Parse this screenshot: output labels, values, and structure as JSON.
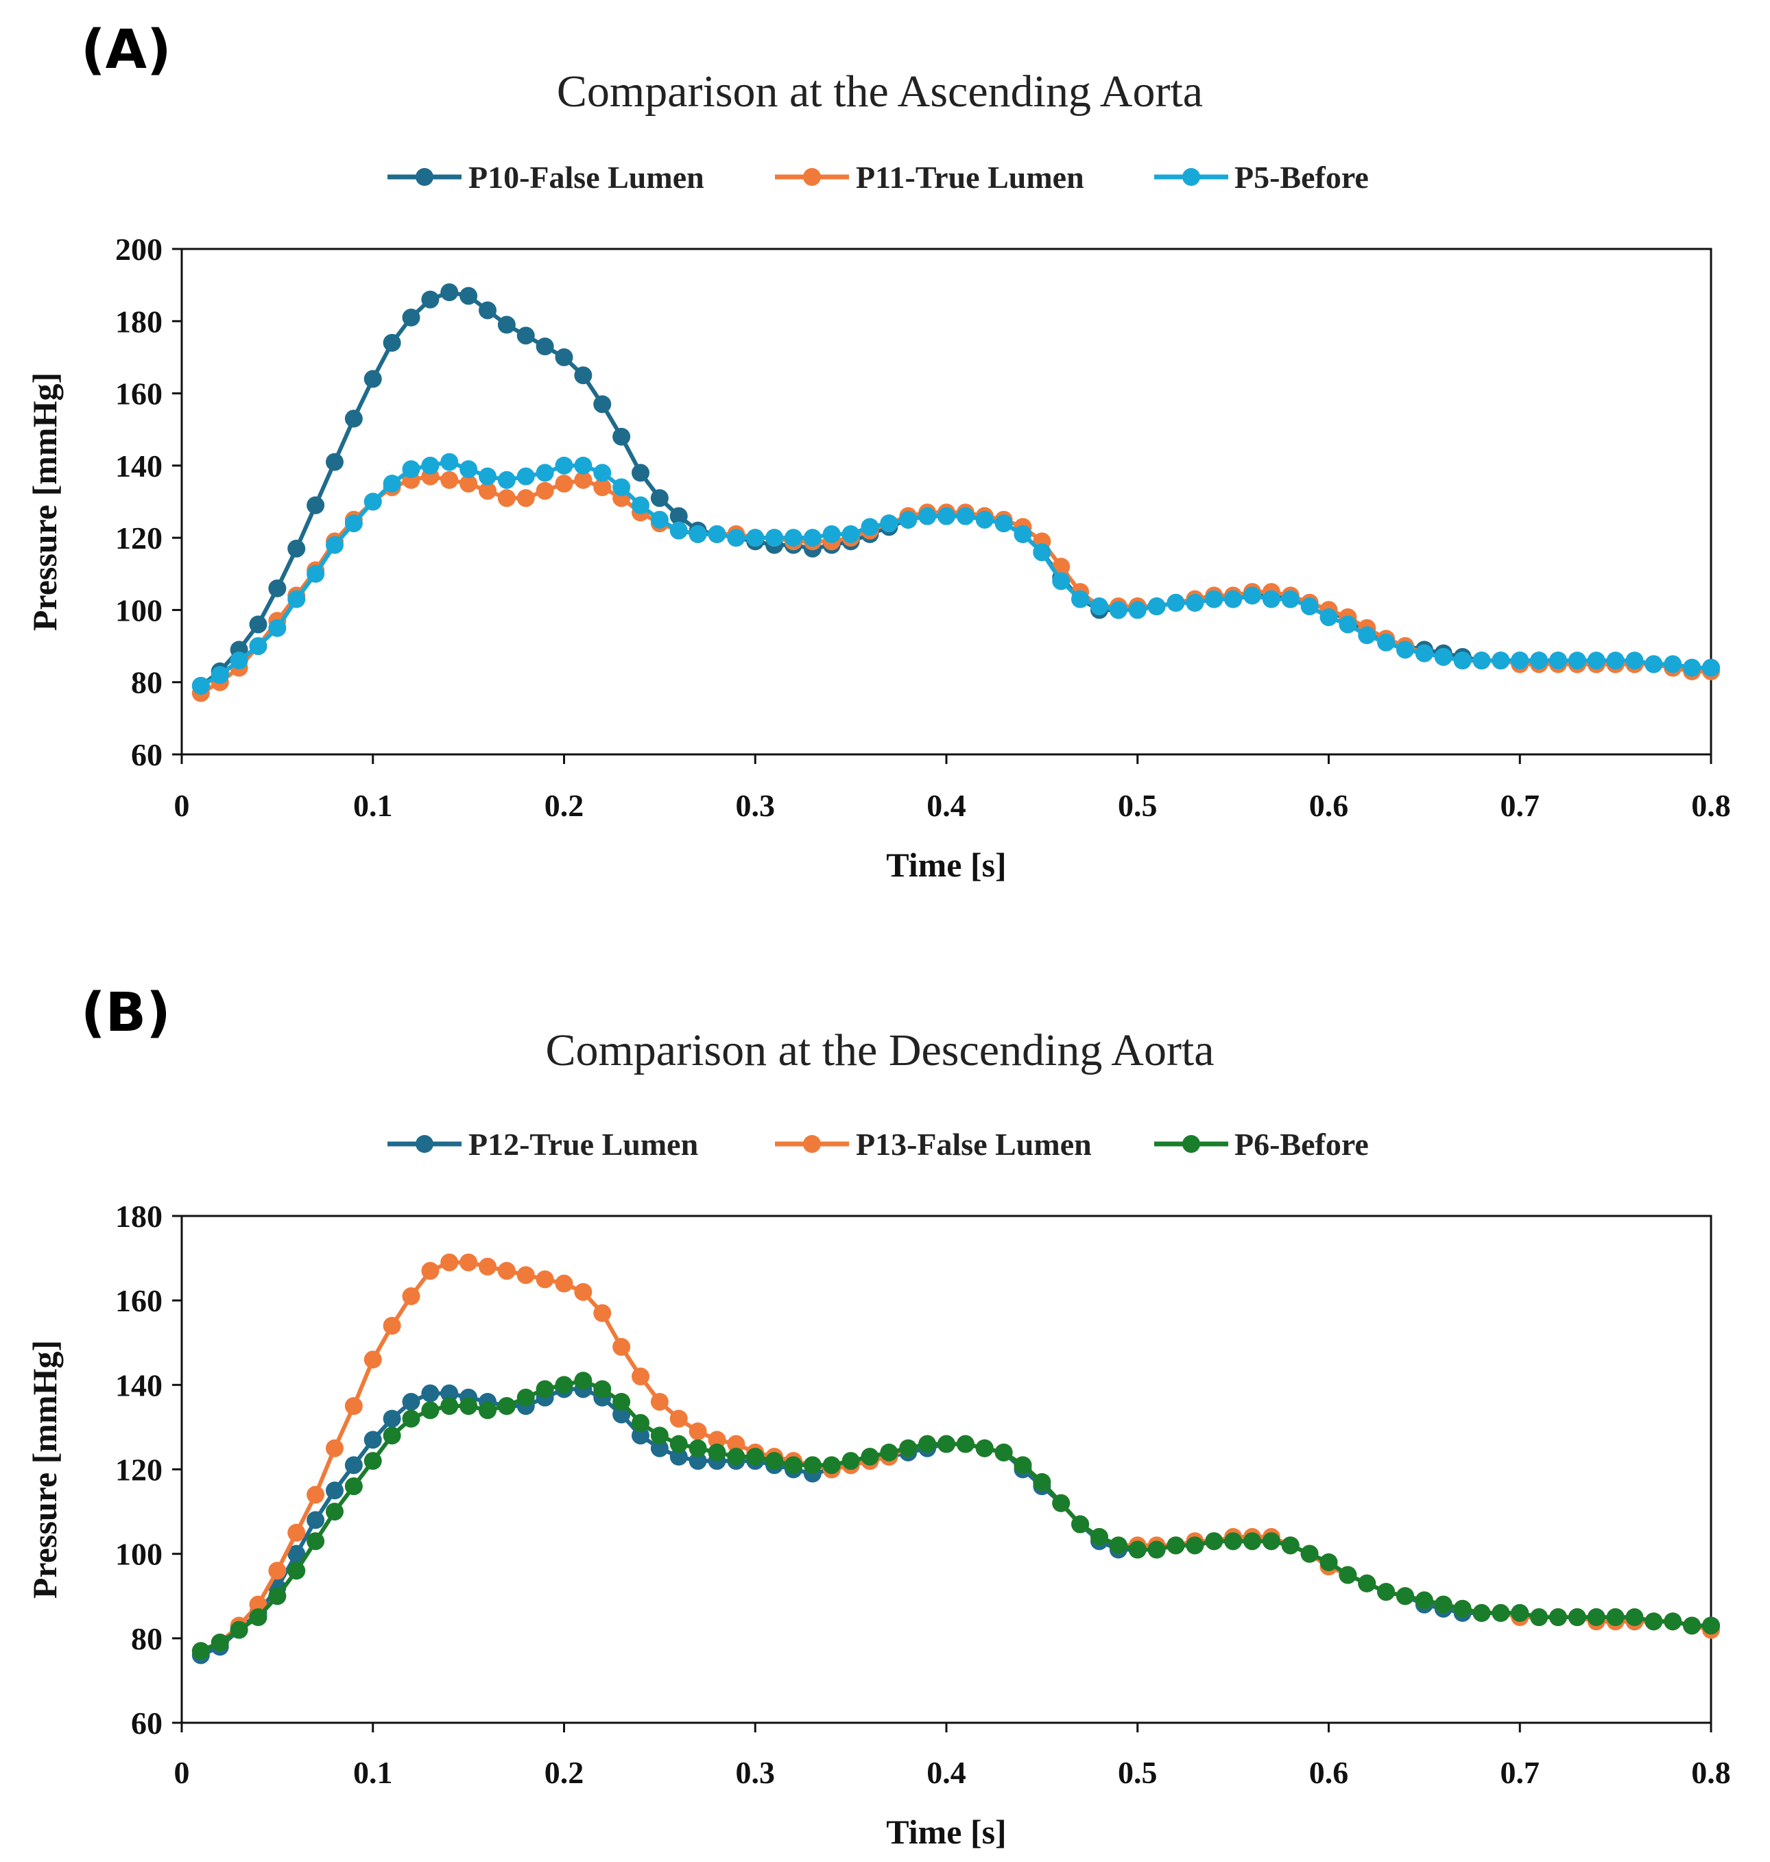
{
  "chart_data": [
    {
      "type": "line",
      "panel": "(A)",
      "title": "Comparison at the Ascending Aorta",
      "xlabel": "Time [s]",
      "ylabel": "Pressure [mmHg]",
      "xlim": [
        0,
        0.8
      ],
      "ylim": [
        60,
        200
      ],
      "xticks": [
        "0",
        "0.1",
        "0.2",
        "0.3",
        "0.4",
        "0.5",
        "0.6",
        "0.7",
        "0.8"
      ],
      "yticks": [
        "60",
        "80",
        "100",
        "120",
        "140",
        "160",
        "180",
        "200"
      ],
      "grid": false,
      "legend_position": "top",
      "x": [
        0.01,
        0.02,
        0.03,
        0.04,
        0.05,
        0.06,
        0.07,
        0.08,
        0.09,
        0.1,
        0.11,
        0.12,
        0.13,
        0.14,
        0.15,
        0.16,
        0.17,
        0.18,
        0.19,
        0.2,
        0.21,
        0.22,
        0.23,
        0.24,
        0.25,
        0.26,
        0.27,
        0.28,
        0.29,
        0.3,
        0.31,
        0.32,
        0.33,
        0.34,
        0.35,
        0.36,
        0.37,
        0.38,
        0.39,
        0.4,
        0.41,
        0.42,
        0.43,
        0.44,
        0.45,
        0.46,
        0.47,
        0.48,
        0.49,
        0.5,
        0.51,
        0.52,
        0.53,
        0.54,
        0.55,
        0.56,
        0.57,
        0.58,
        0.59,
        0.6,
        0.61,
        0.62,
        0.63,
        0.64,
        0.65,
        0.66,
        0.67,
        0.68,
        0.69,
        0.7,
        0.71,
        0.72,
        0.73,
        0.74,
        0.75,
        0.76,
        0.77,
        0.78,
        0.79,
        0.8
      ],
      "series": [
        {
          "name": "P10-False Lumen",
          "color": "#1f6b8c",
          "values": [
            79,
            83,
            89,
            96,
            106,
            117,
            129,
            141,
            153,
            164,
            174,
            181,
            186,
            188,
            187,
            183,
            179,
            176,
            173,
            170,
            165,
            157,
            148,
            138,
            131,
            126,
            122,
            121,
            120,
            119,
            118,
            118,
            117,
            118,
            119,
            121,
            123,
            125,
            126,
            126,
            126,
            126,
            124,
            121,
            116,
            109,
            103,
            100,
            100,
            101,
            101,
            102,
            102,
            103,
            103,
            104,
            104,
            103,
            102,
            100,
            97,
            94,
            92,
            90,
            89,
            88,
            87,
            86,
            86,
            86,
            86,
            86,
            85,
            85,
            85,
            85,
            85,
            84,
            84,
            84
          ]
        },
        {
          "name": "P11-True Lumen",
          "color": "#f07a3a",
          "values": [
            77,
            80,
            84,
            90,
            97,
            104,
            111,
            119,
            125,
            130,
            134,
            136,
            137,
            136,
            135,
            133,
            131,
            131,
            133,
            135,
            136,
            134,
            131,
            127,
            124,
            122,
            121,
            121,
            121,
            120,
            120,
            119,
            119,
            119,
            120,
            122,
            124,
            126,
            127,
            127,
            127,
            126,
            125,
            123,
            119,
            112,
            105,
            101,
            101,
            101,
            101,
            102,
            103,
            104,
            104,
            105,
            105,
            104,
            102,
            100,
            98,
            95,
            92,
            90,
            88,
            87,
            86,
            86,
            86,
            85,
            85,
            85,
            85,
            85,
            85,
            85,
            85,
            84,
            83,
            83
          ]
        },
        {
          "name": "P5-Before",
          "color": "#18a8d8",
          "values": [
            79,
            82,
            86,
            90,
            95,
            103,
            110,
            118,
            124,
            130,
            135,
            139,
            140,
            141,
            139,
            137,
            136,
            137,
            138,
            140,
            140,
            138,
            134,
            129,
            125,
            122,
            121,
            121,
            120,
            120,
            120,
            120,
            120,
            121,
            121,
            123,
            124,
            125,
            126,
            126,
            126,
            125,
            124,
            121,
            116,
            108,
            103,
            101,
            100,
            100,
            101,
            102,
            102,
            103,
            103,
            104,
            103,
            103,
            101,
            98,
            96,
            93,
            91,
            89,
            88,
            87,
            86,
            86,
            86,
            86,
            86,
            86,
            86,
            86,
            86,
            86,
            85,
            85,
            84,
            84
          ]
        }
      ]
    },
    {
      "type": "line",
      "panel": "(B)",
      "title": "Comparison at the Descending Aorta",
      "xlabel": "Time [s]",
      "ylabel": "Pressure [mmHg]",
      "xlim": [
        0,
        0.8
      ],
      "ylim": [
        60,
        180
      ],
      "xticks": [
        "0",
        "0.1",
        "0.2",
        "0.3",
        "0.4",
        "0.5",
        "0.6",
        "0.7",
        "0.8"
      ],
      "yticks": [
        "60",
        "80",
        "100",
        "120",
        "140",
        "160",
        "180"
      ],
      "grid": false,
      "legend_position": "top",
      "x": [
        0.01,
        0.02,
        0.03,
        0.04,
        0.05,
        0.06,
        0.07,
        0.08,
        0.09,
        0.1,
        0.11,
        0.12,
        0.13,
        0.14,
        0.15,
        0.16,
        0.17,
        0.18,
        0.19,
        0.2,
        0.21,
        0.22,
        0.23,
        0.24,
        0.25,
        0.26,
        0.27,
        0.28,
        0.29,
        0.3,
        0.31,
        0.32,
        0.33,
        0.34,
        0.35,
        0.36,
        0.37,
        0.38,
        0.39,
        0.4,
        0.41,
        0.42,
        0.43,
        0.44,
        0.45,
        0.46,
        0.47,
        0.48,
        0.49,
        0.5,
        0.51,
        0.52,
        0.53,
        0.54,
        0.55,
        0.56,
        0.57,
        0.58,
        0.59,
        0.6,
        0.61,
        0.62,
        0.63,
        0.64,
        0.65,
        0.66,
        0.67,
        0.68,
        0.69,
        0.7,
        0.71,
        0.72,
        0.73,
        0.74,
        0.75,
        0.76,
        0.77,
        0.78,
        0.79,
        0.8
      ],
      "series": [
        {
          "name": "P12-True Lumen",
          "color": "#1f6b8c",
          "values": [
            76,
            78,
            82,
            86,
            92,
            100,
            108,
            115,
            121,
            127,
            132,
            136,
            138,
            138,
            137,
            136,
            135,
            135,
            137,
            139,
            139,
            137,
            133,
            128,
            125,
            123,
            122,
            122,
            122,
            122,
            121,
            120,
            119,
            120,
            121,
            122,
            123,
            124,
            125,
            126,
            126,
            125,
            124,
            120,
            116,
            112,
            107,
            103,
            101,
            101,
            101,
            102,
            102,
            103,
            103,
            103,
            103,
            102,
            100,
            98,
            95,
            93,
            91,
            90,
            88,
            87,
            86,
            86,
            86,
            86,
            85,
            85,
            85,
            85,
            85,
            84,
            84,
            84,
            83,
            83
          ]
        },
        {
          "name": "P13-False Lumen",
          "color": "#f07a3a",
          "values": [
            77,
            79,
            83,
            88,
            96,
            105,
            114,
            125,
            135,
            146,
            154,
            161,
            167,
            169,
            169,
            168,
            167,
            166,
            165,
            164,
            162,
            157,
            149,
            142,
            136,
            132,
            129,
            127,
            126,
            124,
            123,
            122,
            121,
            120,
            121,
            122,
            123,
            125,
            126,
            126,
            126,
            125,
            124,
            121,
            117,
            112,
            107,
            104,
            102,
            102,
            102,
            102,
            103,
            103,
            104,
            104,
            104,
            102,
            100,
            97,
            95,
            93,
            91,
            90,
            89,
            88,
            87,
            86,
            86,
            85,
            85,
            85,
            85,
            84,
            84,
            84,
            84,
            84,
            83,
            82
          ]
        },
        {
          "name": "P6-Before",
          "color": "#1a7d2b",
          "values": [
            77,
            79,
            82,
            85,
            90,
            96,
            103,
            110,
            116,
            122,
            128,
            132,
            134,
            135,
            135,
            134,
            135,
            137,
            139,
            140,
            141,
            139,
            136,
            131,
            128,
            126,
            125,
            124,
            123,
            123,
            122,
            121,
            121,
            121,
            122,
            123,
            124,
            125,
            126,
            126,
            126,
            125,
            124,
            121,
            117,
            112,
            107,
            104,
            102,
            101,
            101,
            102,
            102,
            103,
            103,
            103,
            103,
            102,
            100,
            98,
            95,
            93,
            91,
            90,
            89,
            88,
            87,
            86,
            86,
            86,
            85,
            85,
            85,
            85,
            85,
            85,
            84,
            84,
            83,
            83
          ]
        }
      ]
    }
  ]
}
